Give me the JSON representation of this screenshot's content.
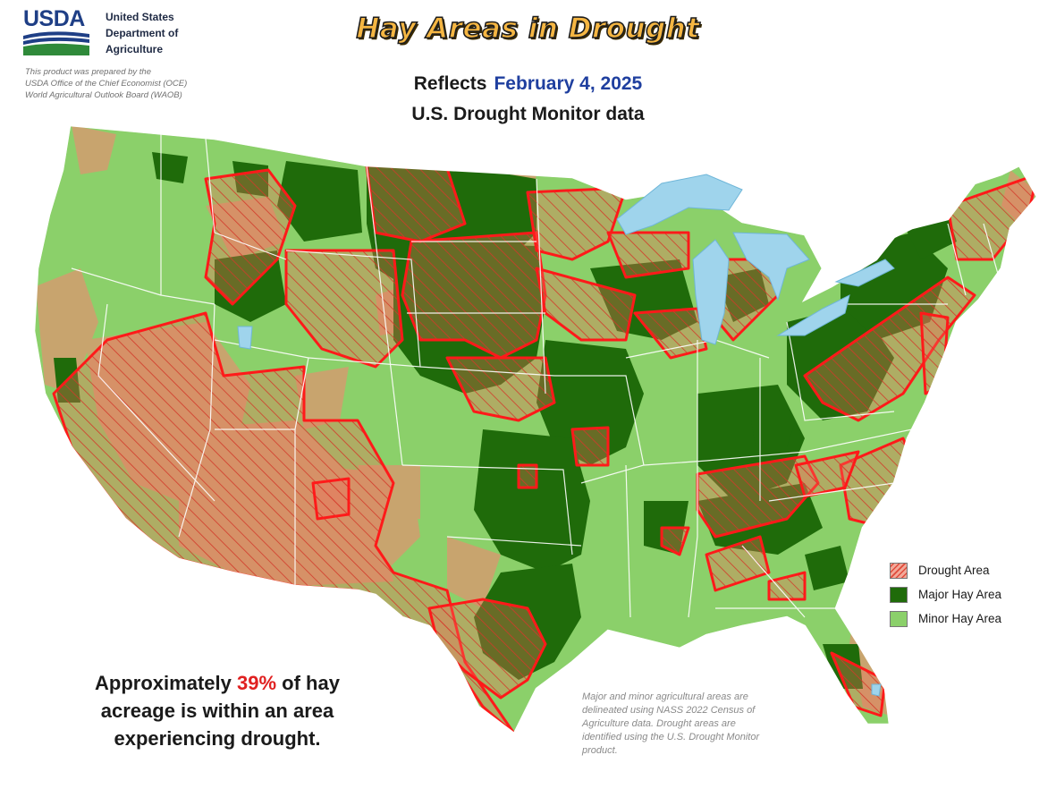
{
  "header": {
    "logo_text": "USDA",
    "agency_line1": "United States",
    "agency_line2": "Department of",
    "agency_line3": "Agriculture",
    "credit_line1": "This product was prepared by the",
    "credit_line2": "USDA Office of the Chief Economist (OCE)",
    "credit_line3": "World Agricultural Outlook Board (WAOB)"
  },
  "title": "Hay Areas in Drought",
  "reflects_label": "Reflects",
  "reflects_date": "February 4, 2025",
  "reflects_sub": "U.S. Drought Monitor data",
  "legend": {
    "items": [
      {
        "label": "Drought Area",
        "color": "#f2a898"
      },
      {
        "label": "Major Hay Area",
        "color": "#1f6b0a"
      },
      {
        "label": "Minor Hay Area",
        "color": "#8bd06a"
      }
    ]
  },
  "summary": {
    "prefix": "Approximately",
    "percent": "39%",
    "suffix": "of hay",
    "line2": "acreage is within an area",
    "line3": "experiencing drought."
  },
  "note": {
    "line1": "Major and minor agricultural areas are",
    "line2": "delineated using NASS 2022 Census of",
    "line3": "Agriculture data.  Drought areas are",
    "line4": "identified using the U.S. Drought Monitor",
    "line5": "product."
  },
  "colors": {
    "major": "#1f6b0a",
    "minor": "#8bd06a",
    "non_ag": "#c8a46e",
    "drought_border": "#ff1a1a",
    "water": "#9fd4ec"
  }
}
